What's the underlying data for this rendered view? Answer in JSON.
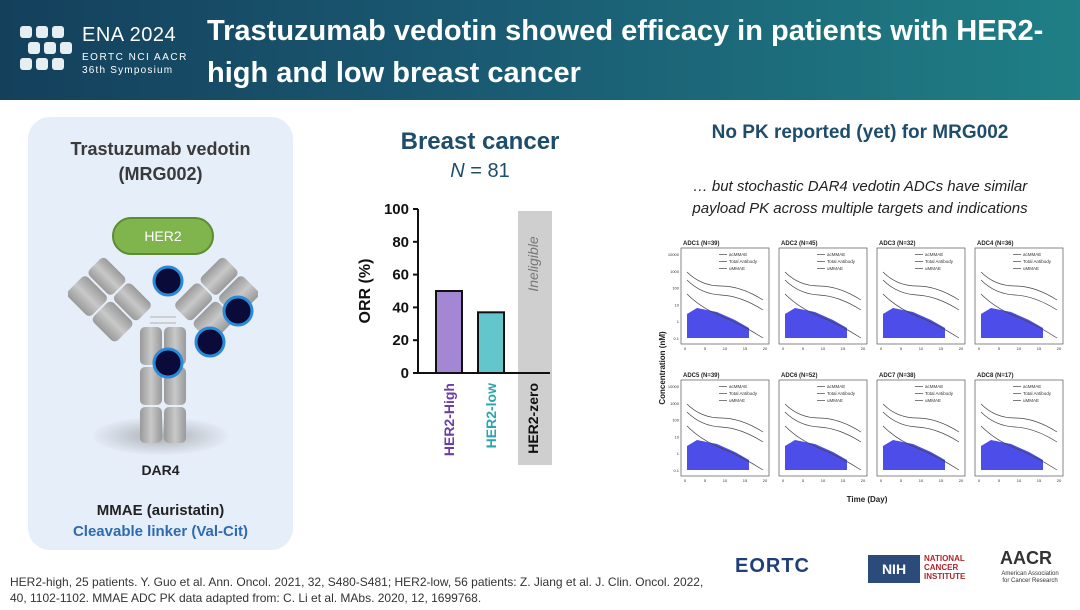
{
  "header": {
    "logo_title": "ENA 2024",
    "logo_orgs": "EORTC NCI AACR",
    "logo_symposium": "36th Symposium",
    "title": "Trastuzumab vedotin showed efficacy in patients with HER2-high and low breast cancer"
  },
  "left_panel": {
    "title_line1": "Trastuzumab vedotin",
    "title_line2": "(MRG002)",
    "her2_label": "HER2",
    "dar_label": "DAR4",
    "payload": "MMAE (auristatin)",
    "linker": "Cleavable linker (Val-Cit)"
  },
  "breast": {
    "title": "Breast cancer",
    "n_label": "N",
    "n_value": "= 81"
  },
  "pk": {
    "title": "No PK reported (yet) for MRG002",
    "subtitle_line1": "… but stochastic DAR4 vedotin ADCs have similar",
    "subtitle_line2": "payload PK across multiple targets and indications",
    "ylabel": "Concentration (nM)",
    "xlabel": "Time (Day)",
    "legend": [
      "acMMAE",
      "Total Antibody",
      "uMMAE"
    ],
    "panels": [
      "ADC1 (N=39)",
      "ADC2 (N=45)",
      "ADC3 (N=32)",
      "ADC4 (N=36)",
      "ADC5 (N=39)",
      "ADC6 (N=52)",
      "ADC7 (N=38)",
      "ADC8 (N=17)"
    ],
    "y_ticks": [
      "10000",
      "1000",
      "100",
      "10",
      "1",
      "0.1"
    ],
    "x_ticks": [
      "0",
      "5",
      "10",
      "15",
      "20"
    ]
  },
  "footer": {
    "line1": "HER2-high, 25 patients. Y. Guo et al. Ann. Oncol. 2021, 32, S480-S481; HER2-low, 56 patients: Z. Jiang et al. J. Clin. Oncol. 2022,",
    "line2": "40, 1102-1102.  MMAE ADC PK data adapted from: C. Li et al. MAbs. 2020, 12, 1699768."
  },
  "logos": {
    "eortc": "EORTC",
    "nih": "NIH",
    "nci": [
      "NATIONAL",
      "CANCER",
      "INSTITUTE"
    ],
    "aacr": "AACR",
    "aacr_sub": [
      "American Association",
      "for Cancer Research"
    ]
  },
  "colors": {
    "header_dark": "#14405c",
    "header_light": "#1f7f85",
    "her2_high": "#a487d4",
    "her2_low": "#62c6cc",
    "ineligible": "#cfcfcf",
    "pk_fill": "#3a3ae8"
  },
  "chart_data": {
    "type": "bar",
    "title": "",
    "ylabel": "ORR (%)",
    "xlabel": "",
    "ylim": [
      0,
      100
    ],
    "y_ticks": [
      0,
      20,
      40,
      60,
      80,
      100
    ],
    "categories": [
      "HER2-High",
      "HER2-low",
      "HER2-zero"
    ],
    "values": [
      50,
      37,
      null
    ],
    "annotations": [
      {
        "category": "HER2-zero",
        "text": "Ineligible"
      }
    ],
    "grid": false
  }
}
